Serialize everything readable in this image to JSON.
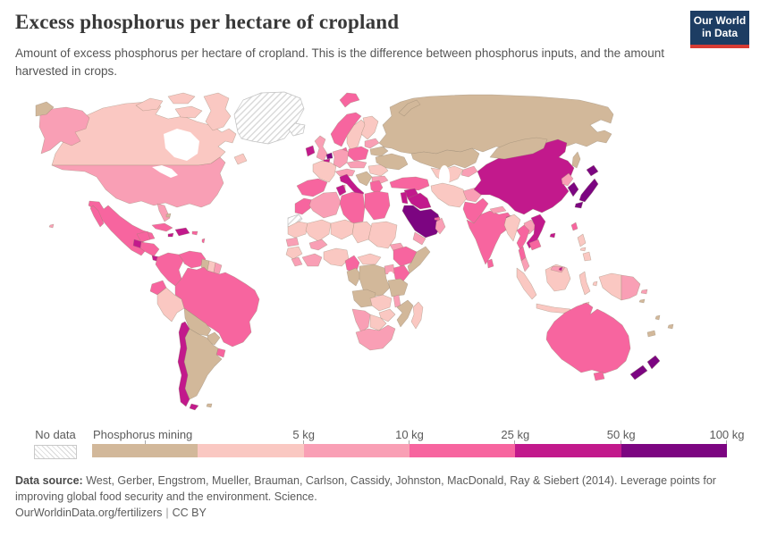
{
  "header": {
    "title": "Excess phosphorus per hectare of cropland",
    "subtitle": "Amount of excess phosphorus per hectare of cropland. This is the difference between phosphorus inputs, and the amount harvested in crops.",
    "logo": {
      "line1": "Our World",
      "line2": "in Data",
      "bg_color": "#1d3d63",
      "bar_color": "#d73c34"
    }
  },
  "legend": {
    "no_data_label": "No data",
    "bins": [
      {
        "label": "Phosphorus mining",
        "color": "#D2B89A"
      },
      {
        "label": "5 kg",
        "color": "#FAC8C2"
      },
      {
        "label": "10 kg",
        "color": "#F99FB5"
      },
      {
        "label": "25 kg",
        "color": "#F7659F"
      },
      {
        "label": "50 kg",
        "color": "#C2198C"
      },
      {
        "label": "100 kg",
        "color": "#7C0581"
      }
    ]
  },
  "footer": {
    "datasource_label": "Data source:",
    "datasource_text": " West, Gerber, Engstrom, Mueller, Brauman, Carlson, Cassidy, Johnston, MacDonald, Ray & Siebert (2014). Leverage points for improving global food security and the environment. Science.",
    "link": "OurWorldinData.org/fertilizers",
    "separator": "|",
    "license": "CC BY"
  },
  "chart_data": {
    "type": "choropleth-map",
    "title": "Excess phosphorus per hectare of cropland",
    "unit": "kg per hectare",
    "bins": [
      "Phosphorus mining",
      "0-5 kg",
      "5-10 kg",
      "10-25 kg",
      "25-50 kg",
      "50-100 kg"
    ],
    "bin_colors": [
      "#D2B89A",
      "#FAC8C2",
      "#F99FB5",
      "#F7659F",
      "#C2198C",
      "#7C0581"
    ],
    "no_data": "hatched"
  },
  "map": {
    "category_colors": {
      "mining": "#D2B89A",
      "0-5": "#FAC8C2",
      "5-10": "#F99FB5",
      "10-25": "#F7659F",
      "25-50": "#C2198C",
      "50-100": "#7C0581"
    },
    "regions": {
      "greenland": {
        "name": "Greenland",
        "category": "nodata"
      },
      "iceland": {
        "name": "Iceland",
        "category": "nodata"
      },
      "western-sahara": {
        "name": "Western Sahara",
        "category": "nodata"
      },
      "russia": {
        "name": "Russia",
        "category": "mining"
      },
      "kazakhstan": {
        "name": "Kazakhstan",
        "category": "mining"
      },
      "mongolia": {
        "name": "Mongolia",
        "category": "mining"
      },
      "ukraine": {
        "name": "Ukraine",
        "category": "mining"
      },
      "belarus": {
        "name": "Belarus",
        "category": "mining"
      },
      "balkans-west": {
        "name": "Western Balkans",
        "category": "mining"
      },
      "guyana": {
        "name": "Guyana",
        "category": "mining"
      },
      "bolivia": {
        "name": "Bolivia",
        "category": "mining"
      },
      "paraguay": {
        "name": "Paraguay",
        "category": "mining"
      },
      "argentina": {
        "name": "Argentina",
        "category": "mining"
      },
      "falkland-islands": {
        "name": "Falkland Islands",
        "category": "mining"
      },
      "bahamas": {
        "name": "Bahamas",
        "category": "mining"
      },
      "somalia": {
        "name": "Somalia",
        "category": "mining"
      },
      "drc": {
        "name": "Democratic Republic of Congo",
        "category": "mining"
      },
      "congo-gabon": {
        "name": "Congo and Gabon",
        "category": "mining"
      },
      "tanzania": {
        "name": "Tanzania",
        "category": "mining"
      },
      "angola": {
        "name": "Angola",
        "category": "mining"
      },
      "mozambique": {
        "name": "Mozambique",
        "category": "mining"
      },
      "new-caledonia": {
        "name": "New Caledonia",
        "category": "mining"
      },
      "fiji": {
        "name": "Fiji",
        "category": "mining"
      },
      "vanuatu": {
        "name": "Vanuatu",
        "category": "mining"
      },
      "solomon-islands": {
        "name": "Solomon Islands",
        "category": "mining"
      },
      "canada": {
        "name": "Canada",
        "category": "0-5"
      },
      "sweden": {
        "name": "Sweden",
        "category": "0-5"
      },
      "finland": {
        "name": "Finland",
        "category": "0-5"
      },
      "france": {
        "name": "France",
        "category": "0-5"
      },
      "romania": {
        "name": "Romania",
        "category": "0-5"
      },
      "peru": {
        "name": "Peru",
        "category": "0-5"
      },
      "suriname": {
        "name": "Suriname",
        "category": "0-5"
      },
      "myanmar": {
        "name": "Myanmar",
        "category": "0-5"
      },
      "indonesia": {
        "name": "Indonesia",
        "category": "0-5"
      },
      "philippines": {
        "name": "Philippines",
        "category": "0-5"
      },
      "madagascar": {
        "name": "Madagascar",
        "category": "0-5"
      },
      "mauritania": {
        "name": "Mauritania",
        "category": "0-5"
      },
      "mali": {
        "name": "Mali",
        "category": "0-5"
      },
      "niger": {
        "name": "Niger",
        "category": "0-5"
      },
      "chad": {
        "name": "Chad",
        "category": "0-5"
      },
      "sudan": {
        "name": "Sudan",
        "category": "0-5"
      },
      "guinea": {
        "name": "Guinea",
        "category": "0-5"
      },
      "nigeria": {
        "name": "Nigeria",
        "category": "0-5"
      },
      "central-african-republic": {
        "name": "Central African Republic",
        "category": "0-5"
      },
      "zambia": {
        "name": "Zambia",
        "category": "0-5"
      },
      "zimbabwe": {
        "name": "Zimbabwe",
        "category": "0-5"
      },
      "botswana": {
        "name": "Botswana",
        "category": "0-5"
      },
      "iran": {
        "name": "Iran",
        "category": "0-5"
      },
      "central-asia": {
        "name": "Uzbekistan and Turkmenistan",
        "category": "0-5"
      },
      "united-states": {
        "name": "United States",
        "category": "5-10"
      },
      "united-kingdom": {
        "name": "United Kingdom",
        "category": "5-10"
      },
      "germany": {
        "name": "Germany",
        "category": "5-10"
      },
      "czech-slovakia": {
        "name": "Czechia and Slovakia",
        "category": "5-10"
      },
      "austria-switzerland": {
        "name": "Austria and Switzerland",
        "category": "5-10"
      },
      "baltics": {
        "name": "Baltic states",
        "category": "5-10"
      },
      "bulgaria": {
        "name": "Bulgaria",
        "category": "5-10"
      },
      "sardinia": {
        "name": "Sardinia",
        "category": "5-10"
      },
      "algeria": {
        "name": "Algeria",
        "category": "5-10"
      },
      "senegal": {
        "name": "Senegal",
        "category": "5-10"
      },
      "sierra-leone-liberia": {
        "name": "Sierra Leone and Liberia",
        "category": "5-10"
      },
      "ivory-coast-ghana": {
        "name": "Cote d'Ivoire and Ghana",
        "category": "5-10"
      },
      "burkina-faso": {
        "name": "Burkina Faso",
        "category": "5-10"
      },
      "eritrea": {
        "name": "Eritrea",
        "category": "5-10"
      },
      "uganda": {
        "name": "Uganda",
        "category": "5-10"
      },
      "malawi": {
        "name": "Malawi",
        "category": "5-10"
      },
      "namibia": {
        "name": "Namibia",
        "category": "5-10"
      },
      "south-africa": {
        "name": "South Africa",
        "category": "5-10"
      },
      "french-guiana": {
        "name": "French Guiana",
        "category": "5-10"
      },
      "laos": {
        "name": "Laos",
        "category": "5-10"
      },
      "malaysia": {
        "name": "Malaysia",
        "category": "5-10"
      },
      "papua-new-guinea": {
        "name": "Papua New Guinea",
        "category": "5-10"
      },
      "north-korea": {
        "name": "North Korea",
        "category": "5-10"
      },
      "afghanistan": {
        "name": "Afghanistan",
        "category": "5-10"
      },
      "kyrgyzstan-tajikistan": {
        "name": "Kyrgyzstan and Tajikistan",
        "category": "5-10"
      },
      "nepal": {
        "name": "Nepal",
        "category": "5-10"
      },
      "yemen": {
        "name": "Yemen",
        "category": "5-10"
      },
      "oman": {
        "name": "Oman",
        "category": "5-10"
      },
      "mexico": {
        "name": "Mexico",
        "category": "10-25"
      },
      "honduras-nicaragua": {
        "name": "Honduras and Nicaragua",
        "category": "10-25"
      },
      "cuba": {
        "name": "Cuba",
        "category": "10-25"
      },
      "puerto-rico": {
        "name": "Puerto Rico",
        "category": "10-25"
      },
      "lesser-antilles": {
        "name": "Lesser Antilles",
        "category": "10-25"
      },
      "colombia": {
        "name": "Colombia",
        "category": "10-25"
      },
      "venezuela": {
        "name": "Venezuela",
        "category": "10-25"
      },
      "ecuador": {
        "name": "Ecuador",
        "category": "10-25"
      },
      "brazil": {
        "name": "Brazil",
        "category": "10-25"
      },
      "uruguay": {
        "name": "Uruguay",
        "category": "10-25"
      },
      "norway": {
        "name": "Norway",
        "category": "10-25"
      },
      "svalbard": {
        "name": "Svalbard",
        "category": "10-25"
      },
      "denmark": {
        "name": "Denmark",
        "category": "10-25"
      },
      "poland": {
        "name": "Poland",
        "category": "10-25"
      },
      "spain": {
        "name": "Spain and Portugal",
        "category": "10-25"
      },
      "greece": {
        "name": "Greece",
        "category": "10-25"
      },
      "turkey": {
        "name": "Turkey",
        "category": "10-25"
      },
      "morocco": {
        "name": "Morocco",
        "category": "10-25"
      },
      "libya": {
        "name": "Libya",
        "category": "10-25"
      },
      "egypt": {
        "name": "Egypt",
        "category": "10-25"
      },
      "cameroon": {
        "name": "Cameroon",
        "category": "10-25"
      },
      "ethiopia": {
        "name": "Ethiopia",
        "category": "10-25"
      },
      "kenya": {
        "name": "Kenya",
        "category": "10-25"
      },
      "pakistan": {
        "name": "Pakistan",
        "category": "10-25"
      },
      "india": {
        "name": "India",
        "category": "10-25"
      },
      "sri-lanka": {
        "name": "Sri Lanka",
        "category": "10-25"
      },
      "thailand": {
        "name": "Thailand",
        "category": "10-25"
      },
      "cambodia": {
        "name": "Cambodia",
        "category": "10-25"
      },
      "taiwan": {
        "name": "Taiwan",
        "category": "10-25"
      },
      "australia": {
        "name": "Australia",
        "category": "10-25"
      },
      "united-arab-emirates": {
        "name": "United Arab Emirates",
        "category": "10-25"
      },
      "guatemala": {
        "name": "Guatemala",
        "category": "25-50"
      },
      "costa-rica-panama": {
        "name": "Costa Rica and Panama",
        "category": "25-50"
      },
      "hispaniola": {
        "name": "Haiti and Dominican Republic",
        "category": "25-50"
      },
      "jamaica": {
        "name": "Jamaica",
        "category": "25-50"
      },
      "chile": {
        "name": "Chile",
        "category": "25-50"
      },
      "ireland": {
        "name": "Ireland",
        "category": "25-50"
      },
      "belgium": {
        "name": "Belgium",
        "category": "25-50"
      },
      "italy": {
        "name": "Italy",
        "category": "25-50"
      },
      "tunisia": {
        "name": "Tunisia",
        "category": "25-50"
      },
      "syria": {
        "name": "Syria",
        "category": "25-50"
      },
      "iraq": {
        "name": "Iraq",
        "category": "25-50"
      },
      "israel-jordan": {
        "name": "Israel and Jordan",
        "category": "25-50"
      },
      "china": {
        "name": "China",
        "category": "25-50"
      },
      "vietnam": {
        "name": "Vietnam",
        "category": "25-50"
      },
      "bangladesh": {
        "name": "Bangladesh",
        "category": "25-50"
      },
      "brunei": {
        "name": "Brunei",
        "category": "25-50"
      },
      "saudi-arabia": {
        "name": "Saudi Arabia",
        "category": "50-100"
      },
      "netherlands": {
        "name": "Netherlands",
        "category": "50-100"
      },
      "south-korea": {
        "name": "South Korea",
        "category": "50-100"
      },
      "japan": {
        "name": "Japan",
        "category": "50-100"
      },
      "new-zealand": {
        "name": "New Zealand",
        "category": "50-100"
      }
    }
  }
}
